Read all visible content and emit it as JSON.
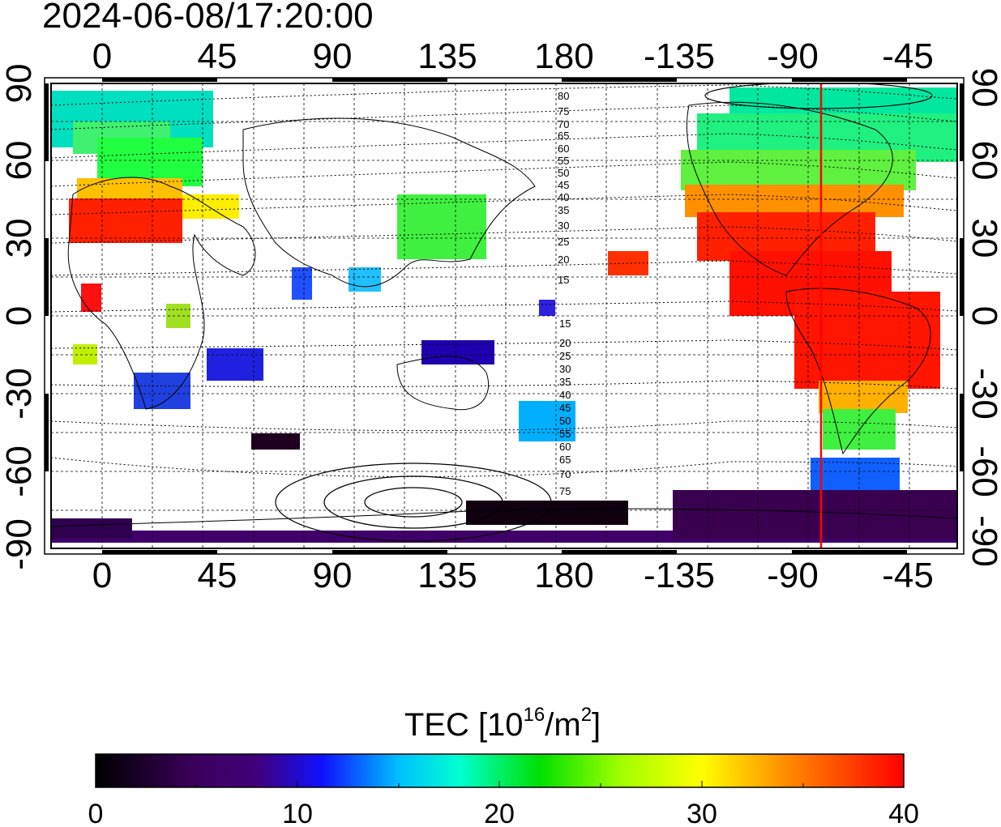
{
  "timestamp": "2024-06-08/17:20:00",
  "map": {
    "lon_ticks": [
      "0",
      "45",
      "90",
      "135",
      "180",
      "-135",
      "-90",
      "-45"
    ],
    "lat_ticks": [
      "90",
      "60",
      "30",
      "0",
      "-30",
      "-60",
      "-90"
    ],
    "contour_labels_north": [
      "80",
      "75",
      "70",
      "65",
      "60",
      "55",
      "50",
      "45",
      "40",
      "35",
      "30",
      "25",
      "20",
      "15"
    ],
    "contour_labels_south": [
      "15",
      "20",
      "25",
      "30",
      "35",
      "40",
      "45",
      "50",
      "55",
      "60",
      "65",
      "70",
      "75"
    ],
    "terminator_line_color": "#ff0000",
    "terminator_longitude": -80
  },
  "colorbar": {
    "label_prefix": "TEC  [10",
    "label_sup1": "16",
    "label_mid": "/m",
    "label_sup2": "2",
    "label_suffix": "]",
    "tick_labels": [
      "0",
      "10",
      "20",
      "30",
      "40"
    ],
    "range": [
      0,
      40
    ],
    "colors": [
      "#000000",
      "#4b0082",
      "#0000ff",
      "#00ffff",
      "#00ff00",
      "#ffff00",
      "#ff8c00",
      "#ff0000"
    ]
  }
}
